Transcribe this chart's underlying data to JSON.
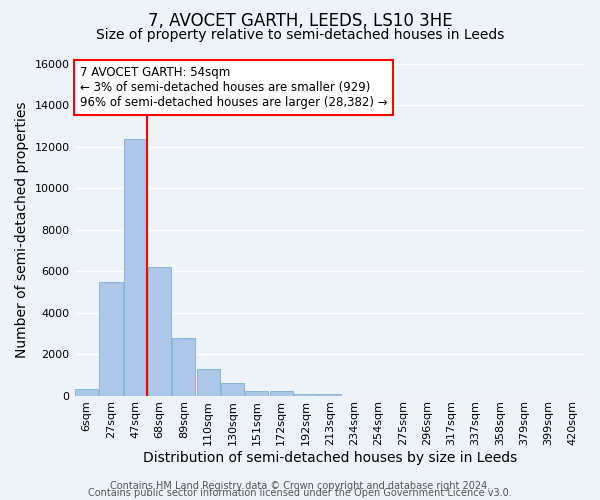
{
  "title": "7, AVOCET GARTH, LEEDS, LS10 3HE",
  "subtitle": "Size of property relative to semi-detached houses in Leeds",
  "xlabel": "Distribution of semi-detached houses by size in Leeds",
  "ylabel": "Number of semi-detached properties",
  "bar_labels": [
    "6sqm",
    "27sqm",
    "47sqm",
    "68sqm",
    "89sqm",
    "110sqm",
    "130sqm",
    "151sqm",
    "172sqm",
    "192sqm",
    "213sqm",
    "234sqm",
    "254sqm",
    "275sqm",
    "296sqm",
    "317sqm",
    "337sqm",
    "358sqm",
    "379sqm",
    "399sqm",
    "420sqm"
  ],
  "bar_values": [
    300,
    5500,
    12400,
    6200,
    2800,
    1300,
    600,
    200,
    200,
    100,
    100,
    0,
    0,
    0,
    0,
    0,
    0,
    0,
    0,
    0,
    0
  ],
  "bar_color": "#aec6e8",
  "bar_edge_color": "#7ab0d4",
  "vline_color": "red",
  "vline_x_index": 2.5,
  "ylim": [
    0,
    16000
  ],
  "yticks": [
    0,
    2000,
    4000,
    6000,
    8000,
    10000,
    12000,
    14000,
    16000
  ],
  "annotation_title": "7 AVOCET GARTH: 54sqm",
  "annotation_line1": "← 3% of semi-detached houses are smaller (929)",
  "annotation_line2": "96% of semi-detached houses are larger (28,382) →",
  "annotation_box_edgecolor": "red",
  "footer_line1": "Contains HM Land Registry data © Crown copyright and database right 2024.",
  "footer_line2": "Contains public sector information licensed under the Open Government Licence v3.0.",
  "background_color": "#eef2f9",
  "grid_color": "#ffffff",
  "title_fontsize": 12,
  "subtitle_fontsize": 10,
  "axis_label_fontsize": 10,
  "tick_fontsize": 8,
  "annotation_fontsize": 8.5,
  "footer_fontsize": 7
}
